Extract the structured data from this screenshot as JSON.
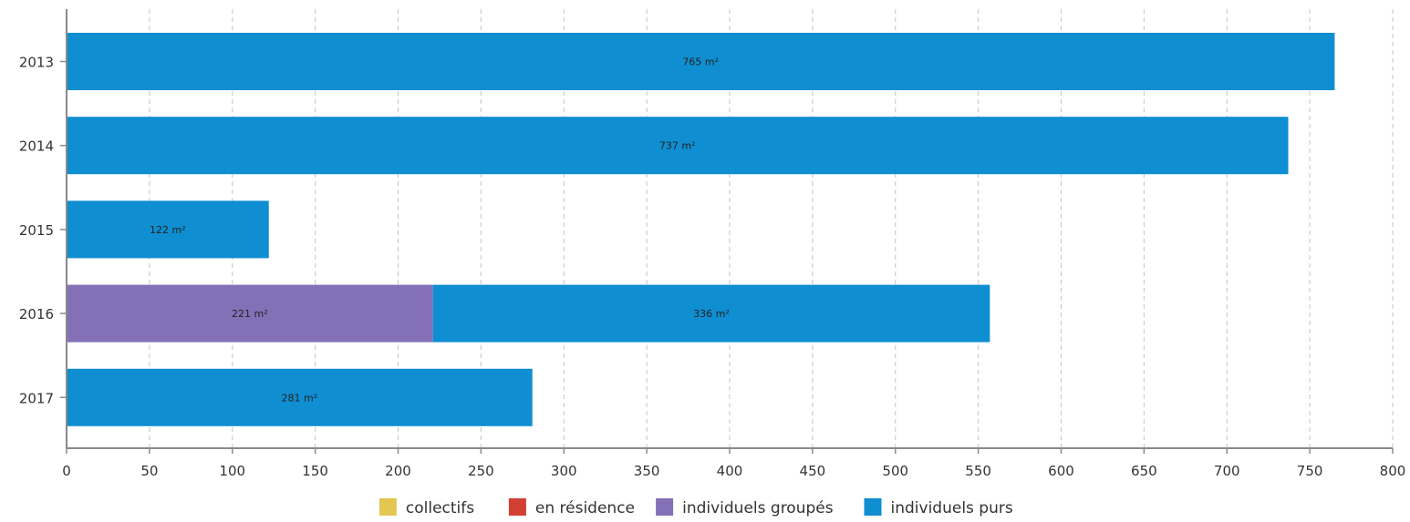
{
  "chart_data": {
    "type": "bar",
    "orientation": "horizontal",
    "stacked": true,
    "categories": [
      "2013",
      "2014",
      "2015",
      "2016",
      "2017"
    ],
    "series": [
      {
        "name": "collectifs",
        "color": "#e3c752",
        "values": [
          0,
          0,
          0,
          0,
          0
        ]
      },
      {
        "name": "en résidence",
        "color": "#d23f33",
        "values": [
          0,
          0,
          0,
          0,
          0
        ]
      },
      {
        "name": "individuels groupés",
        "color": "#8470b7",
        "values": [
          0,
          0,
          0,
          221,
          0
        ]
      },
      {
        "name": "individuels purs",
        "color": "#0f8ed1",
        "values": [
          765,
          737,
          122,
          336,
          281
        ]
      }
    ],
    "data_labels": [
      [
        "",
        "",
        "",
        "765 m²"
      ],
      [
        "",
        "",
        "",
        "737 m²"
      ],
      [
        "",
        "",
        "",
        "122 m²"
      ],
      [
        "",
        "",
        "221 m²",
        "336 m²"
      ],
      [
        "",
        "",
        "",
        "281 m²"
      ]
    ],
    "xlim": [
      0,
      800
    ],
    "x_ticks": [
      0,
      50,
      100,
      150,
      200,
      250,
      300,
      350,
      400,
      450,
      500,
      550,
      600,
      650,
      700,
      750,
      800
    ],
    "grid": true,
    "legend_position": "bottom-center",
    "title": "",
    "xlabel": "",
    "ylabel": ""
  }
}
